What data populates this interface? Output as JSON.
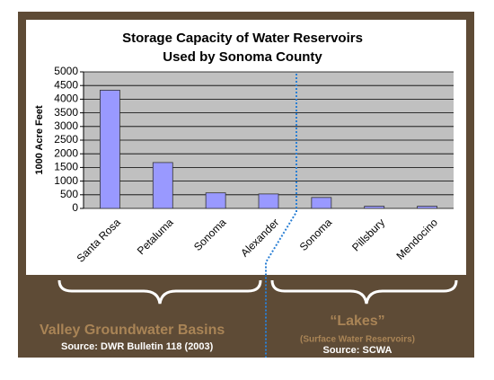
{
  "chart_data": {
    "type": "bar",
    "title": [
      "Storage Capacity of Water Reservoirs",
      "Used by Sonoma County"
    ],
    "y_label": "1000 Acre Feet",
    "categories": [
      "Santa Rosa",
      "Petaluma",
      "Sonoma",
      "Alexander",
      "Sonoma",
      "Pillsbury",
      "Mendocino"
    ],
    "values": [
      4330,
      1680,
      570,
      530,
      400,
      80,
      80
    ],
    "color": "#9999ff",
    "ylim": [
      0,
      5000
    ],
    "yticks": [
      0,
      500,
      1000,
      1500,
      2000,
      2500,
      3000,
      3500,
      4000,
      4500,
      5000
    ],
    "grid": true
  },
  "annotations": {
    "groups": [
      {
        "label": "Valley Groundwater Basins",
        "source": "Source: DWR Bulletin 118 (2003)"
      },
      {
        "label": "“Lakes”",
        "sublabel": "(Surface Water Reservoirs)",
        "source": "Source: SCWA"
      }
    ]
  }
}
